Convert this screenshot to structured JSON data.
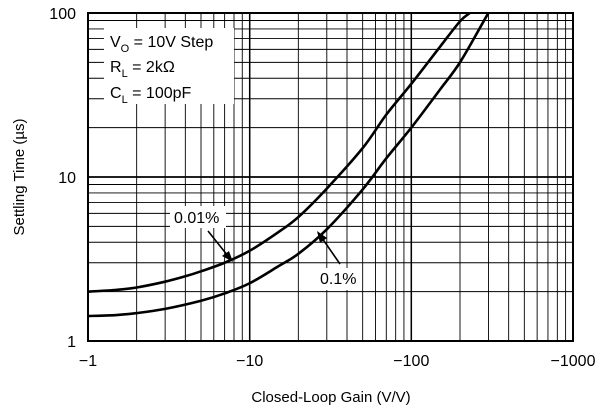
{
  "chart_data": {
    "type": "line",
    "title": "",
    "xlabel": "Closed-Loop Gain (V/V)",
    "ylabel": "Settling Time (µs)",
    "x_scale": "log",
    "y_scale": "log",
    "xlim": [
      -1,
      -1000
    ],
    "ylim": [
      1,
      100
    ],
    "x_ticks": [
      "−1",
      "−10",
      "−100",
      "−1000"
    ],
    "y_ticks": [
      "1",
      "10",
      "100"
    ],
    "grid": true,
    "conditions": [
      {
        "symbol": "V",
        "sub": "O",
        "text": " = 10V Step"
      },
      {
        "symbol": "R",
        "sub": "L",
        "text": " = 2kΩ"
      },
      {
        "symbol": "C",
        "sub": "L",
        "text": " = 100pF"
      }
    ],
    "series": [
      {
        "name": "0.01%",
        "x": [
          -1,
          -1.5,
          -2,
          -3,
          -4,
          -5,
          -7,
          -10,
          -15,
          -20,
          -30,
          -50,
          -70,
          -100,
          -150,
          -200,
          -230
        ],
        "y": [
          2.0,
          2.05,
          2.12,
          2.3,
          2.48,
          2.66,
          3.0,
          3.55,
          4.6,
          5.7,
          8.5,
          15,
          24,
          37,
          62,
          89,
          100
        ]
      },
      {
        "name": "0.1%",
        "x": [
          -1,
          -1.5,
          -2,
          -3,
          -5,
          -7,
          -10,
          -15,
          -20,
          -30,
          -50,
          -70,
          -100,
          -150,
          -200,
          -280,
          -300
        ],
        "y": [
          1.42,
          1.44,
          1.48,
          1.57,
          1.76,
          1.95,
          2.25,
          2.85,
          3.4,
          4.8,
          8.4,
          13,
          20,
          34,
          50,
          89,
          100
        ]
      }
    ]
  }
}
